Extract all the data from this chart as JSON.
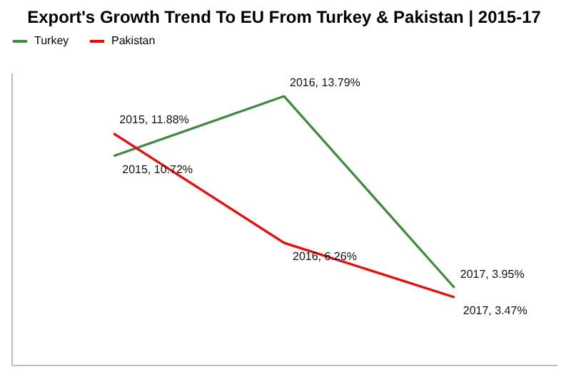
{
  "chart_data": {
    "type": "line",
    "title": "Export's Growth Trend To EU From Turkey & Pakistan | 2015-17",
    "categories": [
      null,
      null,
      null
    ],
    "series": [
      {
        "name": "Turkey",
        "color": "#3c8c3c",
        "values": [
          10.72,
          13.79,
          3.95
        ],
        "value_labels": [
          "2015, 10.72%",
          "2016, 13.79%",
          "2017, 3.95%"
        ]
      },
      {
        "name": "Pakistan",
        "color": "#ff0000",
        "values": [
          11.88,
          6.26,
          3.47
        ],
        "value_labels": [
          "2015, 11.88%",
          "2016, 6.26%",
          "2017, 3.47%"
        ]
      }
    ],
    "ylim": [
      0,
      15
    ],
    "tick_labels": false,
    "legend": "top",
    "line_style": "solid"
  }
}
